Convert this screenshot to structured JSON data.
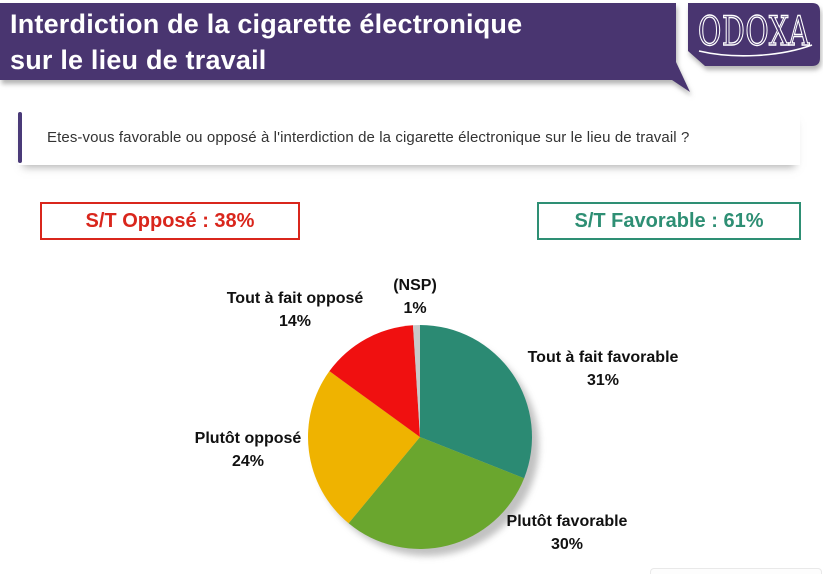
{
  "slide": {
    "title_line1": "Interdiction de la cigarette électronique",
    "title_line2": "sur le lieu de travail",
    "logo_text": "ODOXA",
    "banner_color": "#483670"
  },
  "question": {
    "text": "Etes-vous favorable ou opposé à l'interdiction de la cigarette électronique sur le lieu de travail ?"
  },
  "summary": {
    "opposed": {
      "label": "S/T Opposé : 38%",
      "color": "#d9261c"
    },
    "favorable": {
      "label": "S/T Favorable : 61%",
      "color": "#2e8f74"
    }
  },
  "chart_data": {
    "type": "pie",
    "title": "Interdiction de la cigarette électronique sur le lieu de travail",
    "units": "%",
    "labels": [
      "Tout à fait favorable",
      "Plutôt favorable",
      "Plutôt opposé",
      "Tout à fait opposé",
      "(NSP)"
    ],
    "values": [
      31,
      30,
      24,
      14,
      1
    ],
    "value_labels": [
      "31%",
      "30%",
      "24%",
      "14%",
      "1%"
    ],
    "colors": [
      "#2b8a73",
      "#6aa62e",
      "#efb300",
      "#f01010",
      "#c9c9c9"
    ],
    "start_angle_deg": 0,
    "direction": "clockwise",
    "legend_position": "labels-around-pie",
    "totals": {
      "opposed_pct": 38,
      "favorable_pct": 61
    }
  }
}
